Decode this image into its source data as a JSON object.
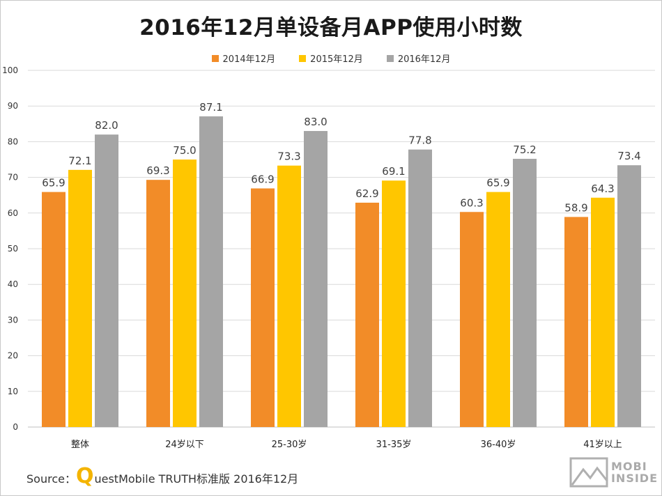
{
  "title": "2016年12月单设备月APP使用小时数",
  "source": {
    "prefix": "Source：",
    "brand_initial": "Q",
    "text": "uestMobile TRUTH标准版 2016年12月"
  },
  "logo": {
    "line1": "MOBI",
    "line2": "INSIDE"
  },
  "colors": {
    "s1": "#f28c28",
    "s2": "#ffc600",
    "s3": "#a5a5a5"
  },
  "chart_data": {
    "type": "bar",
    "categories": [
      "整体",
      "24岁以下",
      "25-30岁",
      "31-35岁",
      "36-40岁",
      "41岁以上"
    ],
    "series": [
      {
        "name": "2014年12月",
        "values": [
          65.9,
          69.3,
          66.9,
          62.9,
          60.3,
          58.9
        ]
      },
      {
        "name": "2015年12月",
        "values": [
          72.1,
          75.0,
          73.3,
          69.1,
          65.9,
          64.3
        ]
      },
      {
        "name": "2016年12月",
        "values": [
          82.0,
          87.1,
          83.0,
          77.8,
          75.2,
          73.4
        ]
      }
    ],
    "ylim": [
      0,
      100
    ],
    "yticks": [
      "0",
      "10",
      "20",
      "30",
      "40",
      "50",
      "60",
      "70",
      "80",
      "90",
      "100"
    ],
    "grid": true,
    "legend": "top-center"
  }
}
